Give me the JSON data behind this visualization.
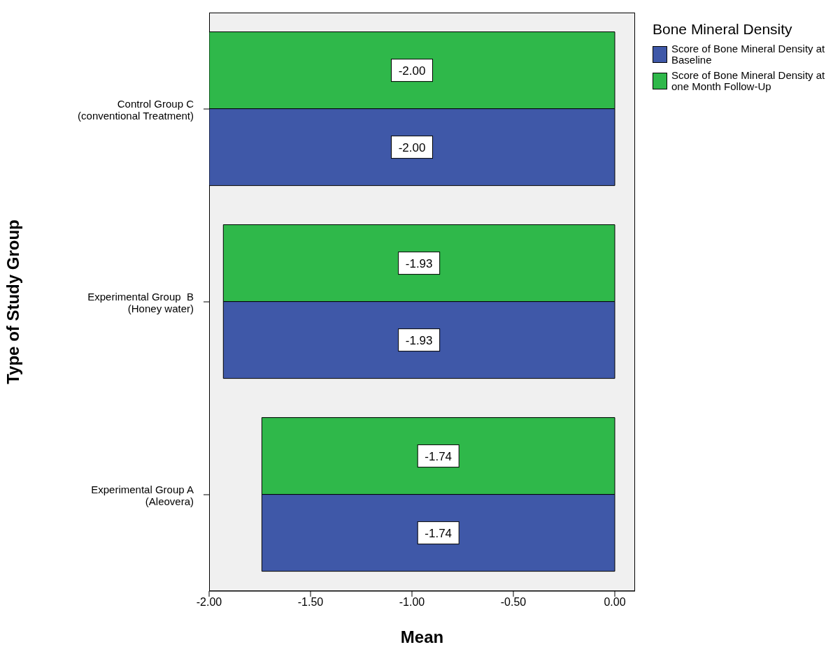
{
  "chart_data": {
    "type": "bar",
    "orientation": "horizontal",
    "xlabel": "Mean",
    "ylabel": "Type of Study Group",
    "legend_title": "Bone Mineral Density",
    "legend": "top right",
    "categories": [
      "Control Group C\n(conventional Treatment)",
      "Experimental Group  B\n(Honey water)",
      "Experimental Group A\n(Aleovera)"
    ],
    "series": [
      {
        "name": "Score of Bone Mineral Density at Baseline",
        "color": "#3f58a8",
        "values": [
          -2.0,
          -1.93,
          -1.74
        ],
        "value_labels": [
          "-2.00",
          "-1.93",
          "-1.74"
        ]
      },
      {
        "name": "Score of Bone Mineral Density at one Month Follow-Up",
        "color": "#2fb84a",
        "values": [
          -2.0,
          -1.93,
          -1.74
        ],
        "value_labels": [
          "-2.00",
          "-1.93",
          "-1.74"
        ]
      }
    ],
    "xlim": [
      -2,
      0.1
    ],
    "xticks": [
      {
        "value": -2,
        "label": "-2.00"
      },
      {
        "value": -1.5,
        "label": "-1.50"
      },
      {
        "value": -1,
        "label": "-1.00"
      },
      {
        "value": -0.5,
        "label": "-0.50"
      },
      {
        "value": 0,
        "label": "0.00"
      }
    ],
    "grid": false
  }
}
